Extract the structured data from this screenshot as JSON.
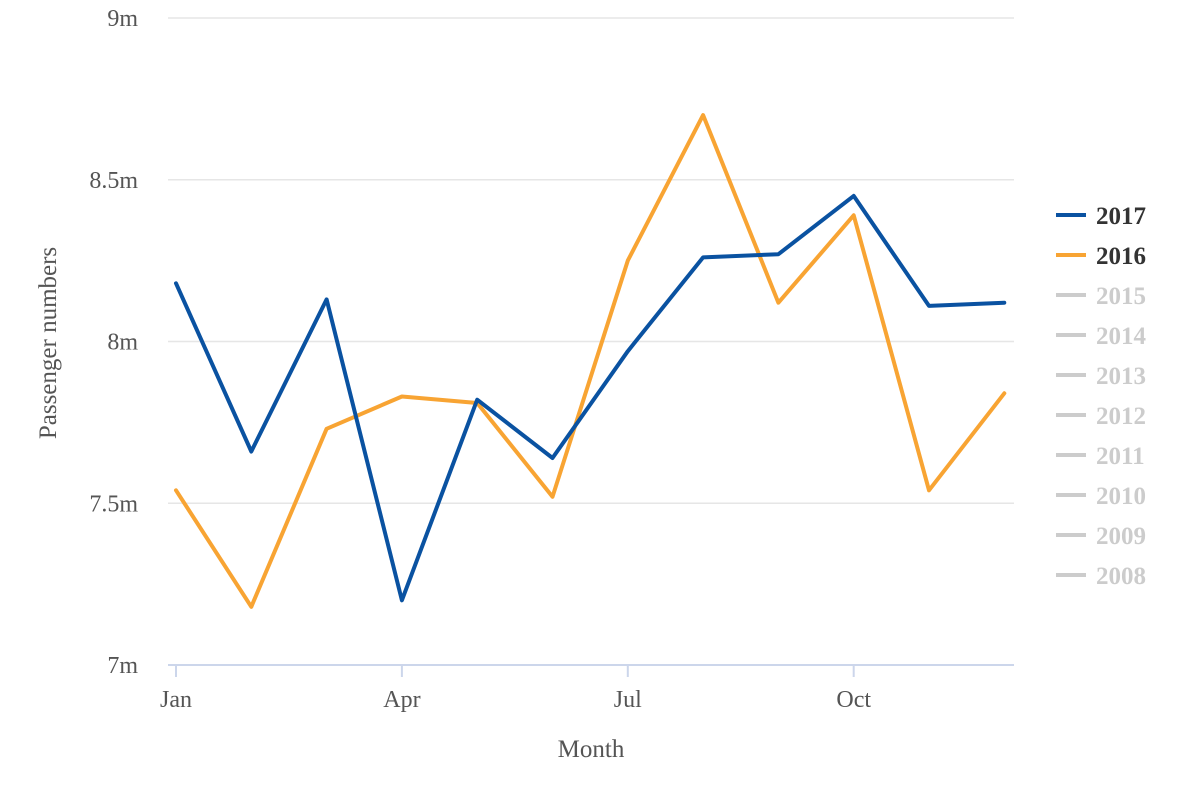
{
  "chart_data": {
    "type": "line",
    "title": "",
    "xlabel": "Month",
    "ylabel": "Passenger numbers",
    "x": [
      "Jan",
      "Feb",
      "Mar",
      "Apr",
      "May",
      "Jun",
      "Jul",
      "Aug",
      "Sep",
      "Oct",
      "Nov",
      "Dec"
    ],
    "x_tick_labels": [
      "Jan",
      "Apr",
      "Jul",
      "Oct"
    ],
    "y_tick_labels": [
      "7m",
      "7.5m",
      "8m",
      "8.5m",
      "9m"
    ],
    "y_ticks": [
      7000000,
      7500000,
      8000000,
      8500000,
      9000000
    ],
    "ylim": [
      7000000,
      9000000
    ],
    "grid": "horizontal",
    "legend_position": "right",
    "series": [
      {
        "name": "2017",
        "color": "#0a52a1",
        "visible": true,
        "values": [
          8180000,
          7660000,
          8130000,
          7200000,
          7820000,
          7640000,
          7970000,
          8260000,
          8270000,
          8450000,
          8110000,
          8120000
        ]
      },
      {
        "name": "2016",
        "color": "#f8a433",
        "visible": true,
        "values": [
          7540000,
          7180000,
          7730000,
          7830000,
          7810000,
          7520000,
          8250000,
          8700000,
          8120000,
          8390000,
          7540000,
          7840000
        ]
      }
    ],
    "hidden_series": [
      "2015",
      "2014",
      "2013",
      "2012",
      "2011",
      "2010",
      "2009",
      "2008"
    ],
    "hidden_color": "#cccccc"
  }
}
